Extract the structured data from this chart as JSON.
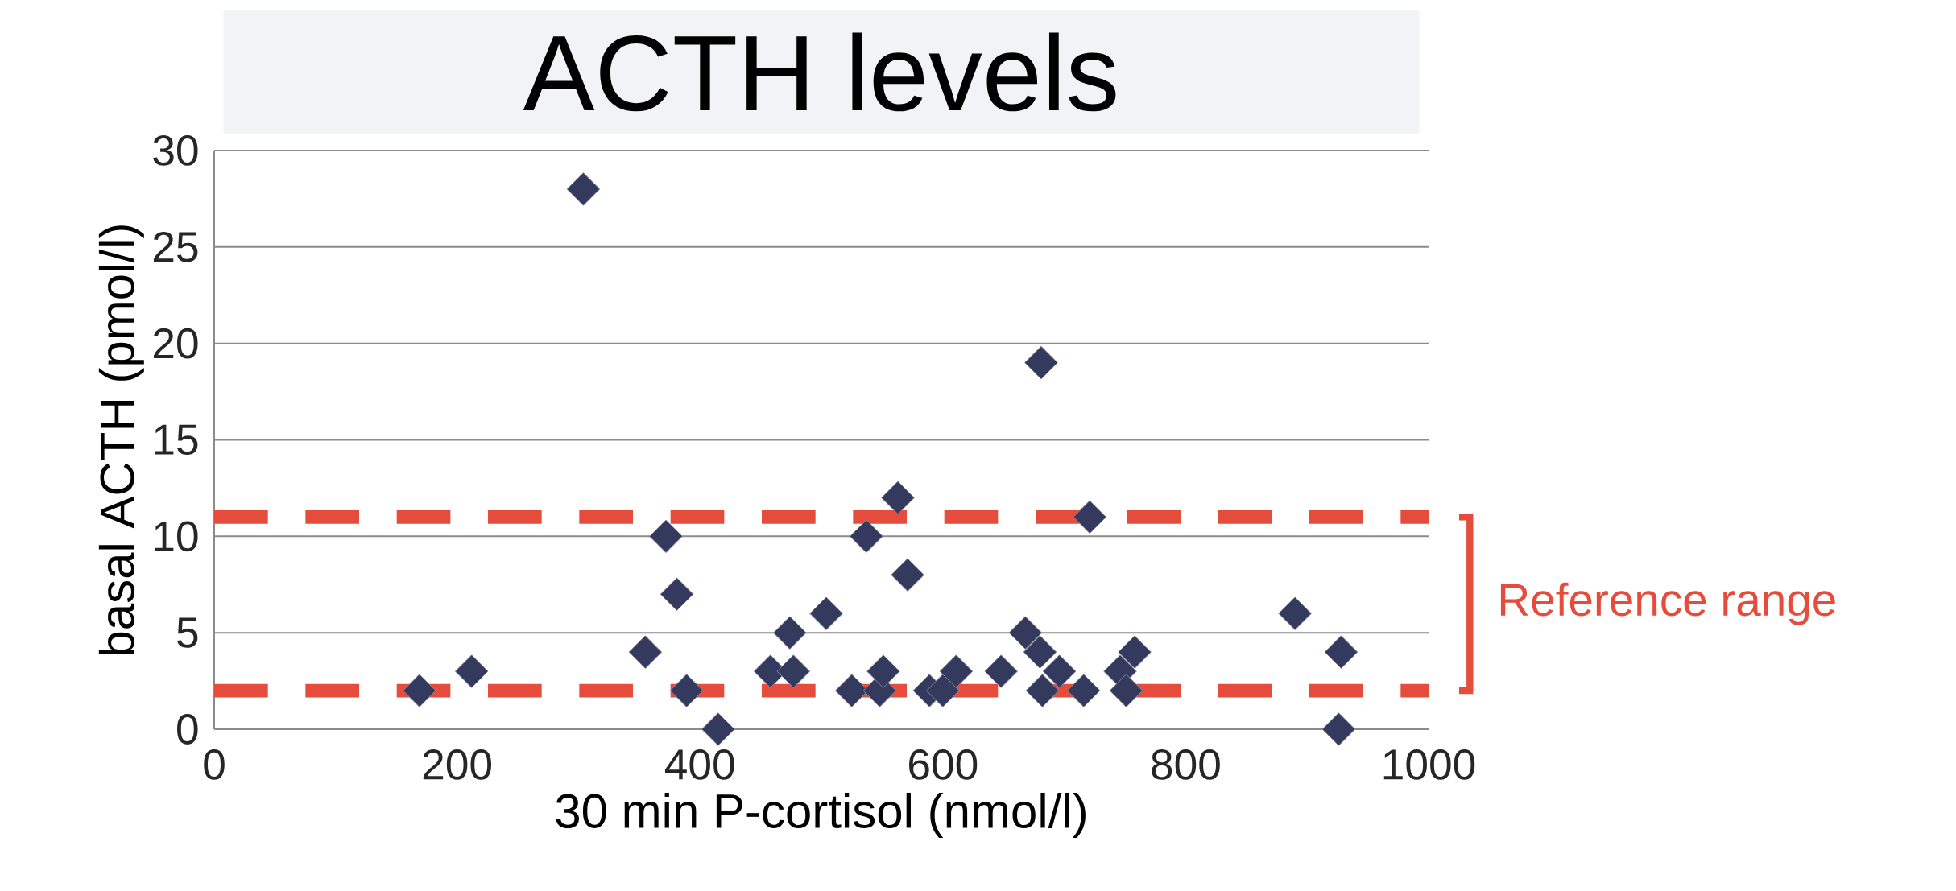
{
  "chart_data": {
    "type": "scatter",
    "title": "ACTH levels",
    "xlabel": "30 min P-cortisol (nmol/l)",
    "ylabel": "basal ACTH (pmol/l)",
    "x": [
      169,
      212,
      304,
      355,
      372,
      381,
      389,
      415,
      458,
      474,
      477,
      504,
      525,
      537,
      548,
      551,
      563,
      571,
      589,
      600,
      611,
      648,
      668,
      680,
      681,
      682,
      696,
      716,
      721,
      746,
      751,
      758,
      890,
      928,
      926
    ],
    "series": [
      {
        "color": "#333a5e",
        "values": [
          2,
          3,
          28,
          4,
          10,
          7,
          2,
          0,
          3,
          5,
          3,
          6,
          2,
          10,
          2,
          3,
          12,
          8,
          2,
          2,
          3,
          3,
          5,
          4,
          19,
          2,
          3,
          2,
          11,
          3,
          2,
          4,
          6,
          4,
          0
        ]
      }
    ],
    "xlim": [
      0,
      1000
    ],
    "ylim": [
      0,
      30
    ],
    "xticks": [
      0,
      200,
      400,
      600,
      800,
      1000
    ],
    "yticks": [
      0,
      5,
      10,
      15,
      20,
      25,
      30
    ],
    "grid": "y",
    "marker": "diamond",
    "ref_lines": [
      {
        "axis": "y",
        "value": 11,
        "color": "#e64c3c",
        "line_style": "dashed"
      },
      {
        "axis": "y",
        "value": 2,
        "color": "#e64c3c",
        "line_style": "dashed"
      }
    ],
    "annotations": [
      "Reference range"
    ]
  }
}
